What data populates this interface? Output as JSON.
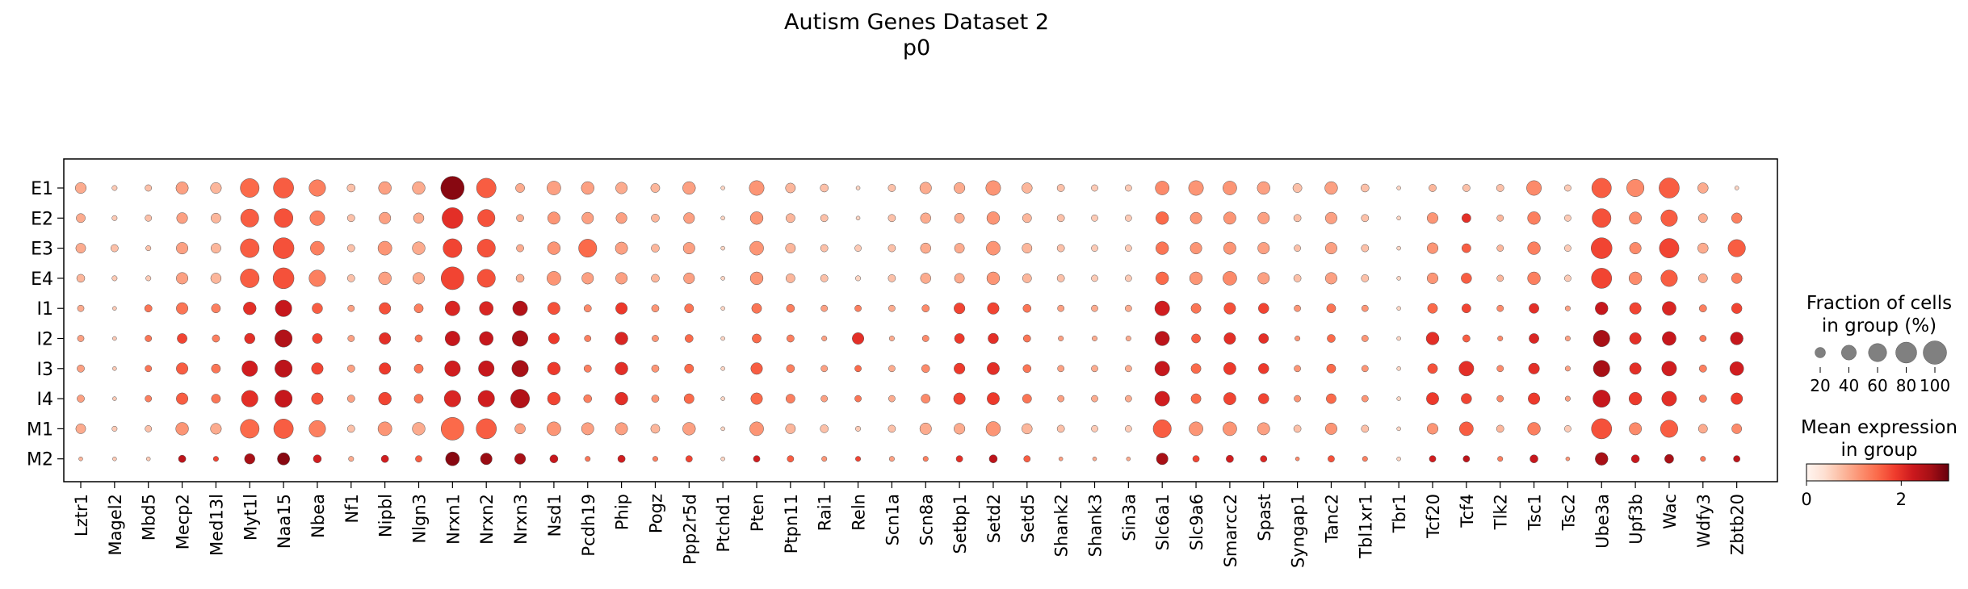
{
  "chart_data": {
    "type": "dotplot",
    "title": "Autism Genes Dataset 2",
    "subtitle": "p0",
    "genes": [
      "Lztr1",
      "Magel2",
      "Mbd5",
      "Mecp2",
      "Med13l",
      "Myt1l",
      "Naa15",
      "Nbea",
      "Nf1",
      "Nipbl",
      "Nlgn3",
      "Nrxn1",
      "Nrxn2",
      "Nrxn3",
      "Nsd1",
      "Pcdh19",
      "Phip",
      "Pogz",
      "Ppp2r5d",
      "Ptchd1",
      "Pten",
      "Ptpn11",
      "Rai1",
      "Reln",
      "Scn1a",
      "Scn8a",
      "Setbp1",
      "Setd2",
      "Setd5",
      "Shank2",
      "Shank3",
      "Sin3a",
      "Slc6a1",
      "Slc9a6",
      "Smarcc2",
      "Spast",
      "Syngap1",
      "Tanc2",
      "Tbl1xr1",
      "Tbr1",
      "Tcf20",
      "Tcf4",
      "Tlk2",
      "Tsc1",
      "Tsc2",
      "Ube3a",
      "Upf3b",
      "Wac",
      "Wdfy3",
      "Zbtb20"
    ],
    "groups": [
      "E1",
      "E2",
      "E3",
      "E4",
      "I1",
      "I2",
      "I3",
      "I4",
      "M1",
      "M2"
    ],
    "fraction_pct": [
      [
        22,
        5,
        8,
        28,
        22,
        65,
        75,
        50,
        12,
        30,
        30,
        100,
        70,
        15,
        35,
        30,
        25,
        15,
        30,
        3,
        40,
        18,
        12,
        3,
        10,
        25,
        22,
        40,
        20,
        10,
        8,
        8,
        35,
        40,
        35,
        30,
        15,
        30,
        12,
        3,
        10,
        10,
        10,
        40,
        8,
        70,
        55,
        75,
        20,
        3
      ],
      [
        15,
        5,
        8,
        22,
        18,
        60,
        65,
        40,
        10,
        25,
        20,
        80,
        55,
        10,
        28,
        25,
        22,
        12,
        22,
        3,
        30,
        15,
        10,
        3,
        10,
        20,
        18,
        30,
        15,
        10,
        8,
        8,
        30,
        25,
        28,
        25,
        10,
        25,
        10,
        3,
        22,
        15,
        8,
        30,
        8,
        65,
        28,
        50,
        15,
        20
      ],
      [
        18,
        10,
        5,
        25,
        18,
        65,
        80,
        35,
        10,
        35,
        30,
        65,
        60,
        10,
        30,
        60,
        28,
        12,
        25,
        3,
        35,
        18,
        10,
        8,
        10,
        20,
        18,
        35,
        18,
        10,
        8,
        8,
        30,
        25,
        28,
        25,
        8,
        25,
        10,
        3,
        22,
        15,
        8,
        30,
        8,
        80,
        25,
        70,
        20,
        55
      ],
      [
        12,
        5,
        5,
        25,
        20,
        65,
        80,
        50,
        10,
        30,
        25,
        95,
        60,
        12,
        35,
        25,
        25,
        12,
        22,
        3,
        30,
        15,
        10,
        5,
        10,
        20,
        18,
        30,
        15,
        10,
        8,
        8,
        30,
        30,
        35,
        25,
        10,
        25,
        10,
        3,
        22,
        20,
        8,
        30,
        8,
        75,
        30,
        50,
        15,
        20
      ],
      [
        8,
        3,
        10,
        25,
        15,
        30,
        50,
        20,
        8,
        25,
        15,
        40,
        35,
        40,
        28,
        10,
        25,
        10,
        15,
        3,
        18,
        12,
        8,
        8,
        8,
        10,
        22,
        25,
        12,
        8,
        8,
        8,
        40,
        18,
        25,
        20,
        8,
        15,
        8,
        3,
        18,
        15,
        8,
        18,
        5,
        30,
        25,
        35,
        10,
        20
      ],
      [
        8,
        3,
        8,
        18,
        10,
        20,
        55,
        18,
        8,
        25,
        10,
        40,
        35,
        45,
        22,
        8,
        30,
        8,
        12,
        3,
        15,
        10,
        5,
        25,
        5,
        8,
        18,
        20,
        10,
        5,
        5,
        5,
        38,
        15,
        25,
        18,
        5,
        12,
        8,
        3,
        30,
        10,
        5,
        18,
        5,
        50,
        25,
        35,
        8,
        30
      ],
      [
        10,
        3,
        8,
        25,
        15,
        45,
        55,
        25,
        10,
        25,
        15,
        45,
        45,
        50,
        30,
        10,
        30,
        10,
        15,
        3,
        25,
        12,
        8,
        8,
        8,
        12,
        22,
        28,
        12,
        8,
        8,
        8,
        40,
        18,
        28,
        20,
        8,
        15,
        8,
        3,
        18,
        40,
        8,
        22,
        5,
        50,
        25,
        40,
        10,
        35
      ],
      [
        10,
        3,
        8,
        25,
        15,
        50,
        55,
        25,
        10,
        30,
        15,
        50,
        50,
        65,
        30,
        12,
        30,
        10,
        18,
        3,
        25,
        15,
        8,
        8,
        8,
        15,
        25,
        28,
        15,
        8,
        8,
        8,
        40,
        18,
        28,
        20,
        8,
        18,
        8,
        3,
        28,
        20,
        8,
        25,
        5,
        55,
        30,
        40,
        10,
        25
      ],
      [
        18,
        5,
        8,
        30,
        22,
        65,
        70,
        50,
        10,
        35,
        30,
        95,
        75,
        20,
        35,
        28,
        28,
        15,
        30,
        3,
        35,
        18,
        12,
        5,
        10,
        25,
        22,
        38,
        20,
        10,
        8,
        8,
        60,
        35,
        35,
        28,
        10,
        25,
        10,
        3,
        22,
        35,
        10,
        30,
        8,
        75,
        28,
        55,
        15,
        18
      ],
      [
        3,
        3,
        3,
        10,
        5,
        20,
        28,
        12,
        5,
        10,
        8,
        35,
        25,
        22,
        12,
        5,
        10,
        5,
        8,
        3,
        8,
        8,
        5,
        5,
        5,
        5,
        8,
        12,
        8,
        3,
        3,
        3,
        25,
        8,
        10,
        8,
        3,
        8,
        5,
        3,
        8,
        8,
        5,
        12,
        3,
        30,
        12,
        15,
        5,
        8
      ]
    ],
    "mean_expression": [
      [
        0.9,
        0.6,
        0.7,
        1.0,
        0.8,
        1.5,
        1.6,
        1.3,
        0.7,
        1.0,
        0.9,
        2.8,
        1.6,
        0.9,
        1.0,
        1.0,
        0.9,
        0.8,
        1.0,
        0.5,
        1.1,
        0.8,
        0.7,
        0.5,
        0.7,
        0.9,
        0.9,
        1.1,
        0.8,
        0.7,
        0.6,
        0.6,
        1.2,
        1.1,
        1.1,
        1.0,
        0.7,
        1.0,
        0.7,
        0.5,
        0.8,
        0.7,
        0.7,
        1.2,
        0.6,
        1.6,
        1.2,
        1.6,
        0.9,
        0.5
      ],
      [
        0.9,
        0.6,
        0.7,
        1.0,
        0.8,
        1.6,
        1.7,
        1.3,
        0.7,
        1.0,
        0.9,
        2.0,
        1.7,
        0.9,
        1.1,
        1.0,
        1.0,
        0.8,
        1.0,
        0.5,
        1.1,
        0.8,
        0.7,
        0.5,
        0.7,
        0.9,
        0.9,
        1.1,
        0.8,
        0.7,
        0.6,
        0.6,
        1.5,
        1.1,
        1.1,
        1.0,
        0.7,
        1.0,
        0.7,
        0.5,
        1.1,
        2.0,
        0.8,
        1.3,
        0.6,
        1.7,
        1.2,
        1.6,
        0.9,
        1.3
      ],
      [
        0.9,
        0.7,
        0.7,
        1.0,
        0.8,
        1.6,
        1.7,
        1.3,
        0.7,
        1.1,
        0.9,
        1.8,
        1.7,
        0.9,
        1.1,
        1.5,
        1.0,
        0.8,
        1.0,
        0.5,
        1.1,
        0.8,
        0.7,
        0.6,
        0.7,
        0.9,
        0.9,
        1.1,
        0.8,
        0.7,
        0.6,
        0.6,
        1.4,
        1.1,
        1.1,
        1.0,
        0.7,
        1.0,
        0.7,
        0.5,
        1.1,
        1.6,
        0.8,
        1.3,
        0.6,
        1.8,
        1.2,
        1.8,
        0.9,
        1.6
      ],
      [
        0.8,
        0.6,
        0.6,
        1.0,
        0.8,
        1.6,
        1.7,
        1.3,
        0.7,
        1.0,
        0.9,
        1.8,
        1.7,
        0.9,
        1.1,
        1.0,
        1.0,
        0.8,
        1.0,
        0.5,
        1.1,
        0.8,
        0.7,
        0.5,
        0.7,
        0.9,
        0.9,
        1.1,
        0.8,
        0.7,
        0.6,
        0.6,
        1.5,
        1.1,
        1.2,
        1.0,
        0.7,
        1.0,
        0.7,
        0.5,
        1.1,
        1.6,
        0.8,
        1.3,
        0.6,
        1.8,
        1.2,
        1.6,
        0.9,
        1.3
      ],
      [
        0.9,
        0.6,
        1.4,
        1.4,
        1.3,
        2.0,
        2.3,
        1.6,
        1.0,
        1.7,
        1.3,
        2.1,
        2.1,
        2.5,
        1.7,
        1.2,
        1.9,
        1.1,
        1.4,
        0.5,
        1.4,
        1.3,
        1.0,
        1.3,
        0.9,
        1.2,
        1.8,
        1.8,
        1.4,
        1.0,
        0.9,
        0.9,
        2.2,
        1.4,
        1.7,
        1.8,
        1.1,
        1.4,
        1.1,
        0.5,
        1.5,
        1.8,
        1.2,
        2.0,
        1.0,
        2.3,
        1.8,
        2.1,
        1.3,
        1.8
      ],
      [
        1.0,
        0.6,
        1.4,
        1.8,
        1.3,
        2.0,
        2.5,
        1.8,
        1.0,
        2.0,
        1.4,
        2.3,
        2.3,
        2.6,
        1.9,
        1.3,
        2.1,
        1.1,
        1.5,
        0.5,
        1.5,
        1.3,
        1.0,
        2.0,
        0.9,
        1.2,
        1.9,
        2.0,
        1.4,
        1.0,
        0.9,
        0.9,
        2.4,
        1.6,
        2.0,
        2.0,
        1.1,
        1.5,
        1.1,
        0.5,
        2.0,
        1.6,
        1.2,
        2.1,
        1.0,
        2.6,
        2.0,
        2.3,
        1.4,
        2.3
      ],
      [
        1.0,
        0.6,
        1.4,
        1.6,
        1.4,
        2.2,
        2.4,
        1.8,
        1.0,
        1.9,
        1.4,
        2.2,
        2.3,
        2.6,
        1.9,
        1.3,
        2.0,
        1.1,
        1.5,
        0.5,
        1.6,
        1.3,
        1.0,
        1.5,
        0.9,
        1.2,
        1.9,
        2.0,
        1.4,
        1.0,
        0.9,
        0.9,
        2.3,
        1.5,
        1.9,
        1.9,
        1.1,
        1.5,
        1.1,
        0.5,
        1.7,
        2.0,
        1.2,
        2.0,
        1.0,
        2.6,
        2.0,
        2.2,
        1.3,
        2.2
      ],
      [
        1.0,
        0.6,
        1.3,
        1.6,
        1.4,
        2.0,
        2.3,
        1.7,
        1.0,
        1.8,
        1.4,
        2.1,
        2.2,
        2.5,
        1.8,
        1.3,
        2.0,
        1.1,
        1.5,
        0.5,
        1.5,
        1.3,
        1.0,
        1.4,
        0.9,
        1.2,
        1.8,
        1.9,
        1.4,
        1.0,
        0.9,
        0.9,
        2.2,
        1.5,
        1.8,
        1.8,
        1.1,
        1.5,
        1.1,
        0.5,
        1.9,
        1.8,
        1.2,
        1.9,
        1.0,
        2.3,
        1.9,
        2.0,
        1.3,
        1.9
      ],
      [
        0.9,
        0.6,
        0.7,
        1.1,
        0.9,
        1.5,
        1.6,
        1.3,
        0.7,
        1.1,
        0.9,
        1.5,
        1.6,
        1.0,
        1.1,
        1.0,
        1.0,
        0.8,
        1.0,
        0.5,
        1.1,
        0.8,
        0.7,
        0.6,
        0.7,
        0.9,
        0.9,
        1.1,
        0.8,
        0.7,
        0.6,
        0.6,
        1.6,
        1.1,
        1.1,
        1.0,
        0.7,
        1.1,
        0.7,
        0.5,
        1.1,
        1.6,
        0.8,
        1.3,
        0.6,
        1.7,
        1.2,
        1.6,
        0.9,
        1.2
      ],
      [
        0.8,
        0.6,
        0.6,
        2.4,
        1.8,
        2.6,
        2.8,
        2.2,
        0.9,
        2.2,
        1.6,
        2.8,
        2.7,
        2.6,
        2.3,
        1.4,
        2.2,
        1.3,
        1.8,
        0.5,
        2.2,
        1.6,
        1.1,
        1.8,
        1.0,
        1.3,
        2.0,
        2.4,
        1.6,
        1.0,
        0.9,
        0.9,
        2.6,
        1.8,
        2.2,
        2.1,
        1.2,
        1.7,
        1.3,
        0.5,
        2.2,
        2.4,
        1.3,
        2.3,
        1.1,
        2.6,
        2.3,
        2.6,
        1.4,
        2.4
      ]
    ],
    "size_legend": {
      "title": "Fraction of cells\nin group (%)",
      "values": [
        20,
        40,
        60,
        80,
        100
      ],
      "tick_labels": [
        "20",
        "40",
        "60",
        "80",
        "100"
      ]
    },
    "color_legend": {
      "title": "Mean expression\nin group",
      "range": [
        0,
        3
      ],
      "ticks": [
        0,
        2
      ],
      "tick_labels": [
        "0",
        "2"
      ],
      "colormap": "Reds",
      "colors": [
        "#fff5f0",
        "#fee0d2",
        "#fcbba1",
        "#fc9272",
        "#fb6a4a",
        "#ef3b2c",
        "#cb181d",
        "#a50f15",
        "#67000d"
      ]
    }
  }
}
